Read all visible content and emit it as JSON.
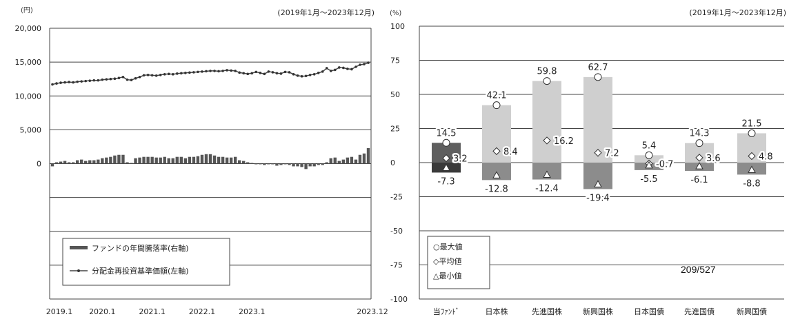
{
  "page_number": "209/527",
  "chart_data": [
    {
      "type": "line",
      "period": "(2019年1月～2023年12月)",
      "left_unit": "(円)",
      "right_unit": "(%)",
      "left_ticks": [
        "20,000",
        "15,000",
        "10,000",
        "5,000",
        "0"
      ],
      "ylim_left": [
        -20000,
        20000
      ],
      "ylim_right": [
        -100,
        100
      ],
      "x_ticks": [
        "2019.1",
        "2020.1",
        "2021.1",
        "2022.1",
        "2023.1",
        "2023.12"
      ],
      "legend": {
        "bar_label": "ファンドの年間騰落率(右軸)",
        "line_label": "分配金再投資基準価額(左軸)"
      },
      "series": [
        {
          "name": "分配金再投資基準価額(左軸)",
          "axis": "left",
          "values": [
            11700,
            11850,
            11950,
            12000,
            12050,
            12000,
            12100,
            12150,
            12200,
            12250,
            12300,
            12300,
            12400,
            12450,
            12500,
            12550,
            12650,
            12800,
            12400,
            12350,
            12600,
            12800,
            13050,
            13100,
            13050,
            13000,
            13100,
            13200,
            13250,
            13200,
            13300,
            13350,
            13400,
            13450,
            13500,
            13550,
            13600,
            13650,
            13700,
            13700,
            13650,
            13700,
            13800,
            13750,
            13700,
            13450,
            13350,
            13250,
            13350,
            13550,
            13400,
            13250,
            13600,
            13500,
            13350,
            13300,
            13550,
            13500,
            13200,
            13000,
            12900,
            12950,
            13100,
            13200,
            13400,
            13600,
            14100,
            13700,
            13850,
            14200,
            14150,
            14000,
            13950,
            14300,
            14600,
            14700,
            14900
          ]
        },
        {
          "name": "ファンドの年間騰落率(右軸)",
          "axis": "right",
          "values": [
            -2,
            1,
            1.5,
            2,
            1,
            1,
            2.5,
            3,
            2,
            2.5,
            2.5,
            3,
            4,
            4.5,
            5,
            6,
            6.5,
            6.5,
            1,
            0.5,
            4,
            4.5,
            5,
            5,
            5,
            4.5,
            4.5,
            5,
            4,
            4,
            5,
            5,
            4,
            5,
            5,
            5.5,
            6.5,
            7,
            7,
            6,
            5,
            5,
            4.5,
            4.5,
            5,
            2.5,
            2,
            1,
            0.5,
            0,
            -0.5,
            -1,
            0,
            0,
            -1.5,
            -1,
            0,
            -1,
            -2,
            -2,
            -2.5,
            -4,
            -2,
            -2,
            -1,
            -1,
            1,
            4,
            4.5,
            2,
            3,
            4.5,
            5,
            3,
            6.5,
            7.5,
            11.5
          ]
        }
      ]
    },
    {
      "type": "bar",
      "period": "(2019年1月～2023年12月)",
      "unit": "(%)",
      "ylim": [
        -100,
        100
      ],
      "y_ticks": [
        "100",
        "75",
        "50",
        "25",
        "0",
        "-25",
        "-50",
        "-75",
        "-100"
      ],
      "categories": [
        "当ﾌｧﾝﾄﾞ",
        "日本株",
        "先進国株",
        "新興国株",
        "日本国債",
        "先進国債",
        "新興国債"
      ],
      "max": [
        14.5,
        42.1,
        59.8,
        62.7,
        5.4,
        14.3,
        21.5
      ],
      "avg": [
        3.2,
        8.4,
        16.2,
        7.2,
        -0.7,
        3.6,
        4.8
      ],
      "min": [
        -7.3,
        -12.8,
        -12.4,
        -19.4,
        -5.5,
        -6.1,
        -8.8
      ],
      "max_labels": [
        "14.5",
        "42.1",
        "59.8",
        "62.7",
        "5.4",
        "14.3",
        "21.5"
      ],
      "avg_labels": [
        "3.2",
        "8.4",
        "16.2",
        "7.2",
        "-0.7",
        "3.6",
        "4.8"
      ],
      "min_labels": [
        "-7.3",
        "-12.8",
        "-12.4",
        "-19.4",
        "-5.5",
        "-6.1",
        "-8.8"
      ],
      "legend": [
        "○最大値",
        "◇平均値",
        "△最小値"
      ],
      "colors": {
        "fund_pos": "#5f5f5f",
        "fund_neg": "#3a3a3a",
        "asset_pos": "#cfcfcf",
        "asset_neg": "#8c8c8c"
      }
    }
  ]
}
